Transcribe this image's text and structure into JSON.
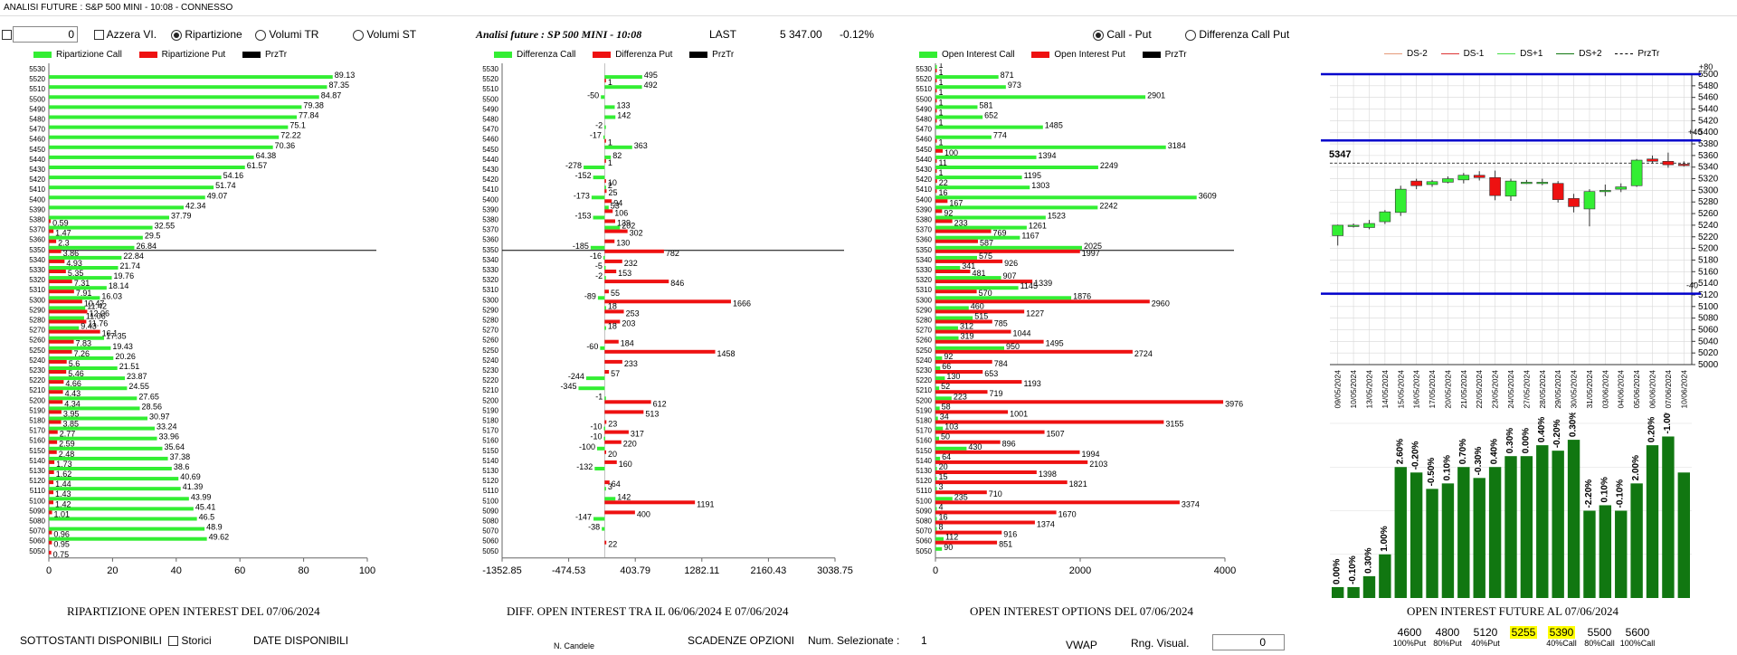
{
  "window": {
    "title": "ANALISI FUTURE : S&P 500 MINI - 10:08 - CONNESSO"
  },
  "controls": {
    "numeric_value": "0",
    "azzera_label": "Azzera VI.",
    "ripartizione_label": "Ripartizione",
    "volumi_tr_label": "Volumi TR",
    "volumi_st_label": "Volumi ST",
    "call_put_label": "Call - Put",
    "diff_call_put_label": "Differenza Call Put"
  },
  "header": {
    "title": "Analisi future : SP 500 MINI - 10:08",
    "last_label": "LAST",
    "last_value": "5 347.00",
    "change": "-0.12%"
  },
  "colors": {
    "green": "#33ee33",
    "red": "#ee1111",
    "black": "#000000",
    "blue": "#0000cc",
    "dkgreen": "#117711",
    "yellow": "#ffff00"
  },
  "strikes": [
    "5530",
    "5520",
    "5510",
    "5500",
    "5490",
    "5480",
    "5470",
    "5460",
    "5450",
    "5440",
    "5430",
    "5420",
    "5410",
    "5400",
    "5390",
    "5380",
    "5370",
    "5360",
    "5350",
    "5340",
    "5330",
    "5320",
    "5310",
    "5300",
    "5290",
    "5280",
    "5270",
    "5260",
    "5250",
    "5240",
    "5230",
    "5220",
    "5210",
    "5200",
    "5190",
    "5180",
    "5170",
    "5160",
    "5150",
    "5140",
    "5130",
    "5120",
    "5110",
    "5100",
    "5090",
    "5080",
    "5070",
    "5060",
    "5050"
  ],
  "panel1": {
    "legend": {
      "call": "Ripartizione Call",
      "put": "Ripartizione Put",
      "prz": "PrzTr"
    },
    "title": "RIPARTIZIONE OPEN INTEREST DEL 07/06/2024",
    "axis": {
      "min": 0,
      "max": 100,
      "ticks": [
        "0",
        "20",
        "40",
        "60",
        "80",
        "100"
      ]
    },
    "call": [
      "",
      "89.13",
      "87.35",
      "84.87",
      "79.38",
      "77.84",
      "75.1",
      "72.22",
      "70.36",
      "64.38",
      "61.57",
      "54.16",
      "51.74",
      "49.07",
      "42.34",
      "37.79",
      "32.55",
      "29.5",
      "26.84",
      "22.84",
      "21.74",
      "19.76",
      "18.14",
      "16.03",
      "11.42",
      "11.06",
      "9.43",
      "17.35",
      "19.43",
      "20.26",
      "21.51",
      "23.87",
      "24.55",
      "27.65",
      "28.56",
      "30.97",
      "33.24",
      "33.96",
      "35.64",
      "37.38",
      "38.6",
      "40.69",
      "41.39",
      "43.99",
      "45.41",
      "46.5",
      "48.9",
      "49.62",
      ""
    ],
    "put": [
      "",
      "",
      "",
      "",
      "",
      "",
      "",
      "",
      "",
      "",
      "",
      "",
      "",
      "",
      "",
      "0.59",
      "1.47",
      "2.3",
      "3.86",
      "4.93",
      "5.35",
      "7.31",
      "7.91",
      "10.47",
      "12.06",
      "11.76",
      "16.1",
      "7.83",
      "7.26",
      "5.6",
      "5.46",
      "4.66",
      "4.43",
      "4.34",
      "3.95",
      "3.85",
      "2.77",
      "2.59",
      "2.48",
      "1.73",
      "1.62",
      "1.44",
      "1.43",
      "1.42",
      "1.01",
      "",
      "0.96",
      "0.95",
      "0.75"
    ]
  },
  "panel2": {
    "legend": {
      "call": "Differenza Call",
      "put": "Differenza Put",
      "prz": "PrzTr"
    },
    "title": "DIFF. OPEN INTEREST TRA IL 06/06/2024 E 07/06/2024",
    "axis": {
      "min": -1352.85,
      "max": 3038.75,
      "ticks": [
        "-1352.85",
        "-474.53",
        "403.79",
        "1282.11",
        "2160.43",
        "3038.75"
      ]
    },
    "call": [
      "",
      "495",
      "492",
      "-50",
      "133",
      "142",
      "-2",
      "-17",
      "363",
      "82",
      "-278",
      "-152",
      "2",
      "-173",
      "53",
      "-153",
      "202",
      "",
      "-185",
      "-16",
      "-5",
      "-2",
      "",
      "-89",
      "18",
      "",
      "18",
      "",
      "-60",
      "",
      "",
      "-244",
      "-345",
      "-1",
      "",
      "",
      "-10",
      "-10",
      "-100",
      "",
      "-132",
      "",
      "3",
      "142",
      "",
      "-147",
      "-38",
      "",
      ""
    ],
    "put": [
      "",
      "1",
      "",
      "",
      "",
      "",
      "",
      "1",
      "",
      "1",
      "",
      "10",
      "25",
      "94",
      "106",
      "139",
      "302",
      "130",
      "782",
      "232",
      "153",
      "846",
      "55",
      "1666",
      "253",
      "203",
      "",
      "184",
      "1458",
      "233",
      "57",
      "",
      "",
      "612",
      "513",
      "23",
      "317",
      "220",
      "20",
      "160",
      "",
      "64",
      "",
      "1191",
      "400",
      "",
      "",
      "22",
      ""
    ]
  },
  "panel3": {
    "legend": {
      "call": "Open Interest Call",
      "put": "Open Interest Put",
      "prz": "PrzTr"
    },
    "title": "OPEN INTEREST OPTIONS DEL 07/06/2024",
    "axis": {
      "min": 0,
      "max": 4000,
      "ticks": [
        "0",
        "2000",
        "4000"
      ]
    },
    "call": [
      "1",
      "871",
      "973",
      "2901",
      "581",
      "652",
      "1485",
      "774",
      "3184",
      "1394",
      "2249",
      "1195",
      "1303",
      "3609",
      "2242",
      "1523",
      "1261",
      "1167",
      "2025",
      "575",
      "341",
      "907",
      "1145",
      "1876",
      "460",
      "515",
      "312",
      "319",
      "950",
      "92",
      "66",
      "130",
      "52",
      "223",
      "58",
      "34",
      "103",
      "50",
      "430",
      "64",
      "20",
      "15",
      "3",
      "235",
      "4",
      "16",
      "8",
      "112",
      "90"
    ],
    "put": [
      "1",
      "1",
      "1",
      "1",
      "1",
      "1",
      "",
      "1",
      "100",
      "11",
      "1",
      "22",
      "16",
      "167",
      "92",
      "233",
      "769",
      "587",
      "1997",
      "926",
      "481",
      "1339",
      "570",
      "2960",
      "1227",
      "785",
      "1044",
      "1495",
      "2724",
      "784",
      "653",
      "1193",
      "719",
      "3976",
      "1001",
      "3155",
      "1507",
      "896",
      "1994",
      "2103",
      "1398",
      "1821",
      "710",
      "3374",
      "1670",
      "1374",
      "916",
      "851",
      ""
    ]
  },
  "candles": {
    "legend": [
      "DS-2",
      "DS-1",
      "DS+1",
      "DS+2",
      "PrzTr"
    ],
    "price_label": "5347",
    "plus_label": "+80",
    "plus2_label": "+40",
    "minus_label": "-40",
    "y_ticks": [
      "5500",
      "5480",
      "5460",
      "5440",
      "5420",
      "5400",
      "5380",
      "5360",
      "5340",
      "5320",
      "5300",
      "5280",
      "5260",
      "5240",
      "5220",
      "5200",
      "5180",
      "5160",
      "5140",
      "5120",
      "5100",
      "5080",
      "5060",
      "5040",
      "5020",
      "5000"
    ],
    "dates": [
      "09/05/2024",
      "10/05/2024",
      "13/05/2024",
      "14/05/2024",
      "15/05/2024",
      "16/05/2024",
      "17/05/2024",
      "20/05/2024",
      "21/05/2024",
      "22/05/2024",
      "23/05/2024",
      "24/05/2024",
      "27/05/2024",
      "28/05/2024",
      "29/05/2024",
      "30/05/2024",
      "31/05/2024",
      "03/06/2024",
      "04/06/2024",
      "05/06/2024",
      "06/06/2024",
      "07/06/2024",
      "10/06/2024"
    ],
    "ohlc": [
      [
        5222,
        5240,
        5205,
        5241
      ],
      [
        5238,
        5240,
        5236,
        5243
      ],
      [
        5236,
        5243,
        5233,
        5249
      ],
      [
        5246,
        5263,
        5242,
        5266
      ],
      [
        5262,
        5302,
        5256,
        5308
      ],
      [
        5316,
        5308,
        5302,
        5320
      ],
      [
        5310,
        5315,
        5306,
        5318
      ],
      [
        5314,
        5320,
        5312,
        5324
      ],
      [
        5318,
        5326,
        5312,
        5330
      ],
      [
        5326,
        5322,
        5317,
        5333
      ],
      [
        5322,
        5291,
        5283,
        5334
      ],
      [
        5290,
        5316,
        5282,
        5320
      ],
      [
        5313,
        5314,
        5311,
        5318
      ],
      [
        5313,
        5314,
        5309,
        5320
      ],
      [
        5312,
        5284,
        5279,
        5316
      ],
      [
        5286,
        5272,
        5262,
        5294
      ],
      [
        5268,
        5298,
        5238,
        5302
      ],
      [
        5298,
        5300,
        5290,
        5310
      ],
      [
        5302,
        5306,
        5297,
        5312
      ],
      [
        5308,
        5352,
        5306,
        5354
      ],
      [
        5354,
        5350,
        5346,
        5360
      ],
      [
        5350,
        5344,
        5339,
        5365
      ],
      [
        5345,
        5343,
        5341,
        5350
      ]
    ]
  },
  "oi_future": {
    "title": "OPEN INTEREST FUTURE AL 07/06/2024",
    "values": [
      1,
      1,
      2,
      4,
      12,
      11.5,
      10,
      10.5,
      12,
      11,
      12,
      13,
      13,
      14,
      13.5,
      14.5,
      8,
      8.5,
      8,
      10.5,
      14,
      14.8,
      11.5
    ],
    "labels": [
      "0.00%",
      "-0.10%",
      "0.30%",
      "1.00%",
      "2.60%",
      "-0.20%",
      "-0.50%",
      "0.10%",
      "0.70%",
      "-0.30%",
      "0.40%",
      "0.30%",
      "0.00%",
      "0.40%",
      "-0.20%",
      "0.30%",
      "-2.20%",
      "0.10%",
      "-0.10%",
      "2.00%",
      "0.20%",
      "-1.00%",
      ""
    ]
  },
  "expiry": {
    "items": [
      {
        "strike": "4600",
        "pct": "100%Put",
        "hl": false
      },
      {
        "strike": "4800",
        "pct": "80%Put",
        "hl": false
      },
      {
        "strike": "5120",
        "pct": "40%Put",
        "hl": false
      },
      {
        "strike": "5255",
        "pct": "",
        "hl": true
      },
      {
        "strike": "5390",
        "pct": "40%Call",
        "hl": true
      },
      {
        "strike": "5500",
        "pct": "80%Call",
        "hl": false
      },
      {
        "strike": "5600",
        "pct": "100%Call",
        "hl": false
      }
    ]
  },
  "bottom": {
    "sottostanti": "SOTTOSTANTI DISPONIBILI",
    "storici": "Storici",
    "date_disp": "DATE DISPONIBILI",
    "n_candele": "N. Candele",
    "scadenze": "SCADENZE OPZIONI",
    "num_sel_label": "Num. Selezionate :",
    "num_sel_value": "1",
    "vwap": "VWAP",
    "rng_label": "Rng. Visual.",
    "rng_value": "0"
  }
}
